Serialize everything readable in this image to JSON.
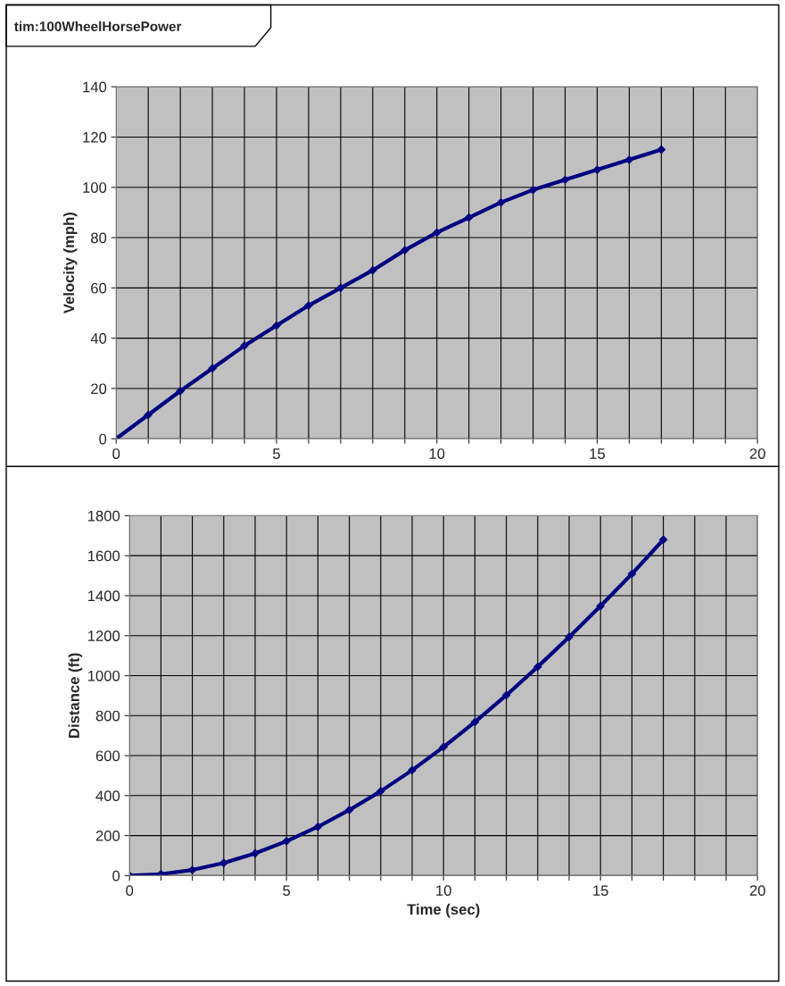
{
  "chart_data": [
    {
      "type": "line",
      "title": "tim:100WheelHorsePower",
      "ylabel": "Velocity (mph)",
      "x": [
        0,
        1,
        2,
        3,
        4,
        5,
        6,
        7,
        8,
        9,
        10,
        11,
        12,
        13,
        14,
        15,
        16,
        17
      ],
      "series": [
        {
          "color": "#000080",
          "values": [
            0,
            9.5,
            19,
            28,
            37,
            45,
            53,
            60,
            67,
            75,
            82,
            88,
            94,
            99,
            103,
            107,
            111,
            115
          ]
        }
      ],
      "xlim": [
        0,
        20
      ],
      "xticks": [
        0,
        {
          "value": 1,
          "label": null
        },
        {
          "value": 2,
          "label": null
        },
        {
          "value": 3,
          "label": null
        },
        {
          "value": 4,
          "label": null
        },
        5,
        {
          "value": 6,
          "label": null
        },
        {
          "value": 7,
          "label": null
        },
        {
          "value": 8,
          "label": null
        },
        {
          "value": 9,
          "label": null
        },
        10,
        {
          "value": 11,
          "label": null
        },
        {
          "value": 12,
          "label": null
        },
        {
          "value": 13,
          "label": null
        },
        {
          "value": 14,
          "label": null
        },
        15,
        {
          "value": 16,
          "label": null
        },
        {
          "value": 17,
          "label": null
        },
        {
          "value": 18,
          "label": null
        },
        {
          "value": 19,
          "label": null
        },
        20
      ],
      "ylim": [
        0,
        140
      ],
      "yticks": [
        0,
        20,
        40,
        60,
        80,
        100,
        120,
        140
      ],
      "grid": true,
      "marker": "diamond",
      "line_style": "solid"
    },
    {
      "type": "line",
      "xlabel": "Time (sec)",
      "ylabel": "Distance (ft)",
      "x": [
        0,
        1,
        2,
        3,
        4,
        5,
        6,
        7,
        8,
        9,
        10,
        11,
        12,
        13,
        14,
        15,
        16,
        17
      ],
      "series": [
        {
          "color": "#000080",
          "values": [
            0,
            7,
            28,
            63,
            111,
            172,
            244,
            328,
            422,
            527,
            643,
            768,
            902,
            1044,
            1193,
            1348,
            1509,
            1680
          ]
        }
      ],
      "xlim": [
        0,
        20
      ],
      "xticks": [
        0,
        {
          "value": 1,
          "label": null
        },
        {
          "value": 2,
          "label": null
        },
        {
          "value": 3,
          "label": null
        },
        {
          "value": 4,
          "label": null
        },
        5,
        {
          "value": 6,
          "label": null
        },
        {
          "value": 7,
          "label": null
        },
        {
          "value": 8,
          "label": null
        },
        {
          "value": 9,
          "label": null
        },
        10,
        {
          "value": 11,
          "label": null
        },
        {
          "value": 12,
          "label": null
        },
        {
          "value": 13,
          "label": null
        },
        {
          "value": 14,
          "label": null
        },
        15,
        {
          "value": 16,
          "label": null
        },
        {
          "value": 17,
          "label": null
        },
        {
          "value": 18,
          "label": null
        },
        {
          "value": 19,
          "label": null
        },
        20
      ],
      "ylim": [
        0,
        1800
      ],
      "yticks": [
        0,
        200,
        400,
        600,
        800,
        1000,
        1200,
        1400,
        1600,
        1800
      ],
      "grid": true,
      "marker": "diamond",
      "line_style": "solid"
    }
  ]
}
